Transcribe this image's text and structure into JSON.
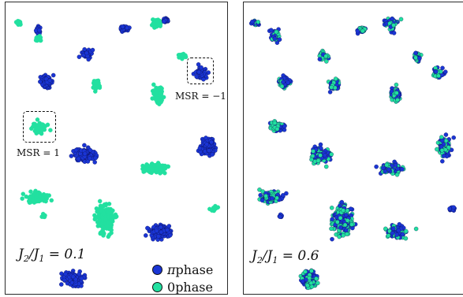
{
  "chart_data": [
    {
      "type": "scatter",
      "title": "",
      "xlabel": "",
      "ylabel": "",
      "parameter": {
        "ratio": "J",
        "sub1": "2",
        "slash": "/J",
        "sub2": "1",
        "value": " = 0.1"
      },
      "legend": {
        "placement": "bottom-right",
        "entries": [
          {
            "prefix": "π",
            "label": " phase",
            "color": "#1a35d4"
          },
          {
            "prefix": "0",
            "label": " phase",
            "color": "#22e0a0"
          }
        ]
      },
      "annotations": [
        {
          "text": "MSR = −1"
        },
        {
          "text": "MSR = 1"
        }
      ],
      "colors": {
        "pi_phase": "#1a35d4",
        "zero_phase": "#22e0a0",
        "outline": "#0a0a4a"
      }
    },
    {
      "type": "scatter",
      "title": "",
      "xlabel": "",
      "ylabel": "",
      "parameter": {
        "ratio": "J",
        "sub1": "2",
        "slash": "/J",
        "sub2": "1",
        "value": " = 0.6"
      },
      "colors": {
        "pi_phase": "#1a35d4",
        "zero_phase": "#22e0a0",
        "outline": "#0a0a4a"
      }
    }
  ]
}
